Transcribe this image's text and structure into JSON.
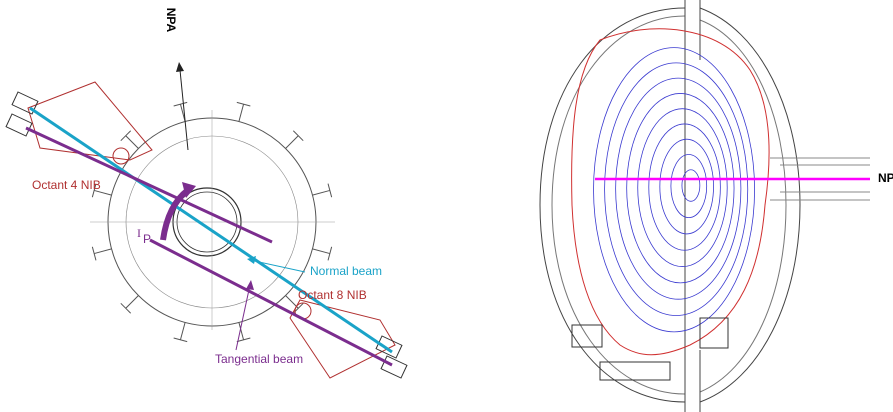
{
  "left_diagram": {
    "npa_label": "NPA",
    "octant4_label": "Octant 4 NIB",
    "current_label": "I",
    "current_subscript": "P",
    "normal_beam_label": "Normal beam",
    "octant8_label": "Octant 8 NIB",
    "tangential_beam_label": "Tangential beam"
  },
  "right_diagram": {
    "npa_label": "NPA"
  }
}
